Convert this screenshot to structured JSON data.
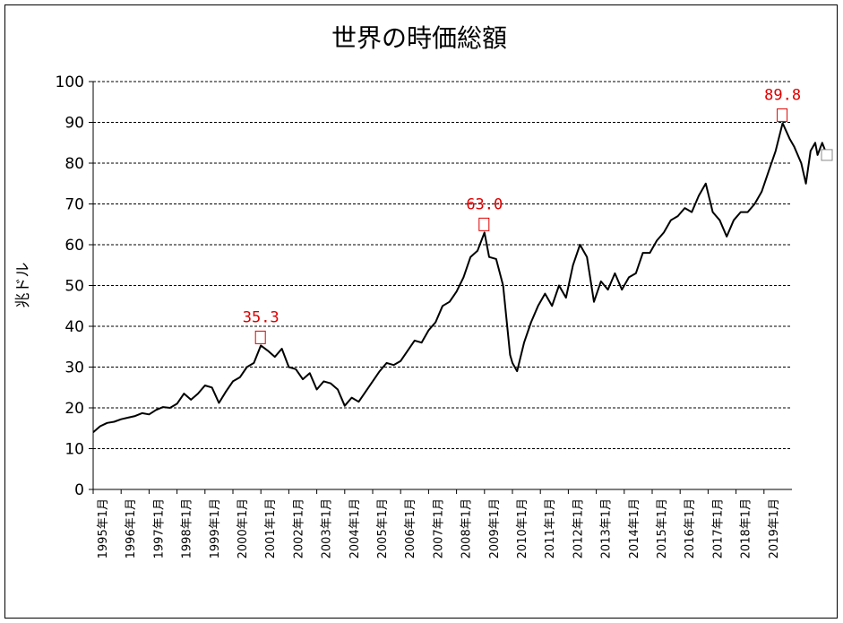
{
  "chart_data": {
    "type": "line",
    "title": "世界の時価総額",
    "ylabel": "兆ドル",
    "xlabel": "",
    "ylim": [
      0,
      100
    ],
    "yticks": [
      "0",
      "10",
      "20",
      "30",
      "40",
      "50",
      "60",
      "70",
      "80",
      "90",
      "100"
    ],
    "grid": "horizontal-dashed",
    "line_color": "#000000",
    "annotation_color": "#dd0000",
    "marker_color": "#888888",
    "xtick_labels": [
      "1995年1月",
      "1996年1月",
      "1997年1月",
      "1998年1月",
      "1999年1月",
      "2000年1月",
      "2001年1月",
      "2002年1月",
      "2003年1月",
      "2004年1月",
      "2005年1月",
      "2006年1月",
      "2007年1月",
      "2008年1月",
      "2009年1月",
      "2010年1月",
      "2011年1月",
      "2012年1月",
      "2013年1月",
      "2014年1月",
      "2015年1月",
      "2016年1月",
      "2017年1月",
      "2018年1月",
      "2019年1月"
    ],
    "x_start": "1995-01",
    "x_end": "2020-01",
    "series": [
      {
        "points": [
          [
            "1995-01",
            14.0
          ],
          [
            "1995-04",
            15.5
          ],
          [
            "1995-07",
            16.3
          ],
          [
            "1995-10",
            16.6
          ],
          [
            "1996-01",
            17.2
          ],
          [
            "1996-04",
            17.6
          ],
          [
            "1996-07",
            18.0
          ],
          [
            "1996-10",
            18.7
          ],
          [
            "1997-01",
            18.4
          ],
          [
            "1997-04",
            19.5
          ],
          [
            "1997-07",
            20.2
          ],
          [
            "1997-10",
            20.0
          ],
          [
            "1998-01",
            21.0
          ],
          [
            "1998-04",
            23.5
          ],
          [
            "1998-07",
            22.0
          ],
          [
            "1998-10",
            23.5
          ],
          [
            "1999-01",
            25.5
          ],
          [
            "1999-04",
            25.0
          ],
          [
            "1999-07",
            21.2
          ],
          [
            "1999-10",
            24.0
          ],
          [
            "2000-01",
            26.5
          ],
          [
            "2000-04",
            27.5
          ],
          [
            "2000-07",
            30.0
          ],
          [
            "2000-10",
            31.0
          ],
          [
            "2001-01",
            35.3
          ],
          [
            "2001-04",
            34.0
          ],
          [
            "2001-07",
            32.5
          ],
          [
            "2001-10",
            34.5
          ],
          [
            "2002-01",
            30.0
          ],
          [
            "2002-04",
            29.5
          ],
          [
            "2002-07",
            27.0
          ],
          [
            "2002-10",
            28.5
          ],
          [
            "2003-01",
            24.5
          ],
          [
            "2003-04",
            26.5
          ],
          [
            "2003-07",
            26.0
          ],
          [
            "2003-10",
            24.5
          ],
          [
            "2004-01",
            20.5
          ],
          [
            "2004-04",
            22.5
          ],
          [
            "2004-07",
            21.5
          ],
          [
            "2004-10",
            24.0
          ],
          [
            "2005-01",
            26.5
          ],
          [
            "2005-04",
            29.0
          ],
          [
            "2005-07",
            31.0
          ],
          [
            "2005-10",
            30.5
          ],
          [
            "2006-01",
            31.5
          ],
          [
            "2006-04",
            34.0
          ],
          [
            "2006-07",
            36.5
          ],
          [
            "2006-10",
            36.0
          ],
          [
            "2007-01",
            39.0
          ],
          [
            "2007-04",
            41.0
          ],
          [
            "2007-07",
            45.0
          ],
          [
            "2007-10",
            46.0
          ],
          [
            "2008-01",
            48.5
          ],
          [
            "2008-04",
            52.0
          ],
          [
            "2008-07",
            57.0
          ],
          [
            "2008-10",
            58.5
          ],
          [
            "2009-01",
            63.0
          ],
          [
            "2009-03",
            57.0
          ],
          [
            "2009-06",
            56.5
          ],
          [
            "2009-09",
            50.0
          ],
          [
            "2009-12",
            33.0
          ],
          [
            "2010-01",
            31.0
          ],
          [
            "2010-03",
            29.0
          ],
          [
            "2010-06",
            36.0
          ],
          [
            "2010-09",
            41.0
          ],
          [
            "2010-12",
            45.0
          ],
          [
            "2011-03",
            48.0
          ],
          [
            "2011-06",
            45.0
          ],
          [
            "2011-09",
            50.0
          ],
          [
            "2011-12",
            47.0
          ],
          [
            "2012-03",
            55.0
          ],
          [
            "2012-06",
            60.0
          ],
          [
            "2012-09",
            57.0
          ],
          [
            "2012-12",
            46.0
          ],
          [
            "2013-03",
            51.0
          ],
          [
            "2013-06",
            49.0
          ],
          [
            "2013-09",
            53.0
          ],
          [
            "2013-12",
            49.0
          ],
          [
            "2014-03",
            52.0
          ],
          [
            "2014-06",
            53.0
          ],
          [
            "2014-09",
            58.0
          ],
          [
            "2014-12",
            58.0
          ],
          [
            "2015-03",
            61.0
          ],
          [
            "2015-06",
            63.0
          ],
          [
            "2015-09",
            66.0
          ],
          [
            "2015-12",
            67.0
          ],
          [
            "2016-03",
            69.0
          ],
          [
            "2016-06",
            68.0
          ],
          [
            "2016-09",
            72.0
          ],
          [
            "2016-12",
            75.0
          ],
          [
            "2017-03",
            68.0
          ],
          [
            "2017-06",
            66.0
          ],
          [
            "2017-09",
            62.0
          ],
          [
            "2017-12",
            66.0
          ],
          [
            "2018-03",
            68.0
          ],
          [
            "2018-06",
            68.0
          ],
          [
            "2018-09",
            70.0
          ],
          [
            "2018-12",
            73.0
          ],
          [
            "2019-03",
            78.0
          ],
          [
            "2019-06",
            83.0
          ],
          [
            "2019-09",
            89.8
          ],
          [
            "2019-12",
            86.0
          ],
          [
            "2020-02",
            84.0
          ],
          [
            "2020-05",
            80.0
          ],
          [
            "2020-07",
            75.0
          ],
          [
            "2020-09",
            83.0
          ],
          [
            "2020-11",
            85.0
          ],
          [
            "2020-12",
            82.0
          ],
          [
            "2021-02",
            85.0
          ],
          [
            "2021-04",
            82.0
          ]
        ]
      }
    ],
    "annotations": [
      {
        "label": "35.3",
        "x": "2001-01",
        "y": 35.3
      },
      {
        "label": "63.0",
        "x": "2009-01",
        "y": 63.0
      },
      {
        "label": "89.8",
        "x": "2019-09",
        "y": 89.8
      }
    ],
    "last_point_marker": {
      "x": "2021-04",
      "y": 82.0
    }
  }
}
